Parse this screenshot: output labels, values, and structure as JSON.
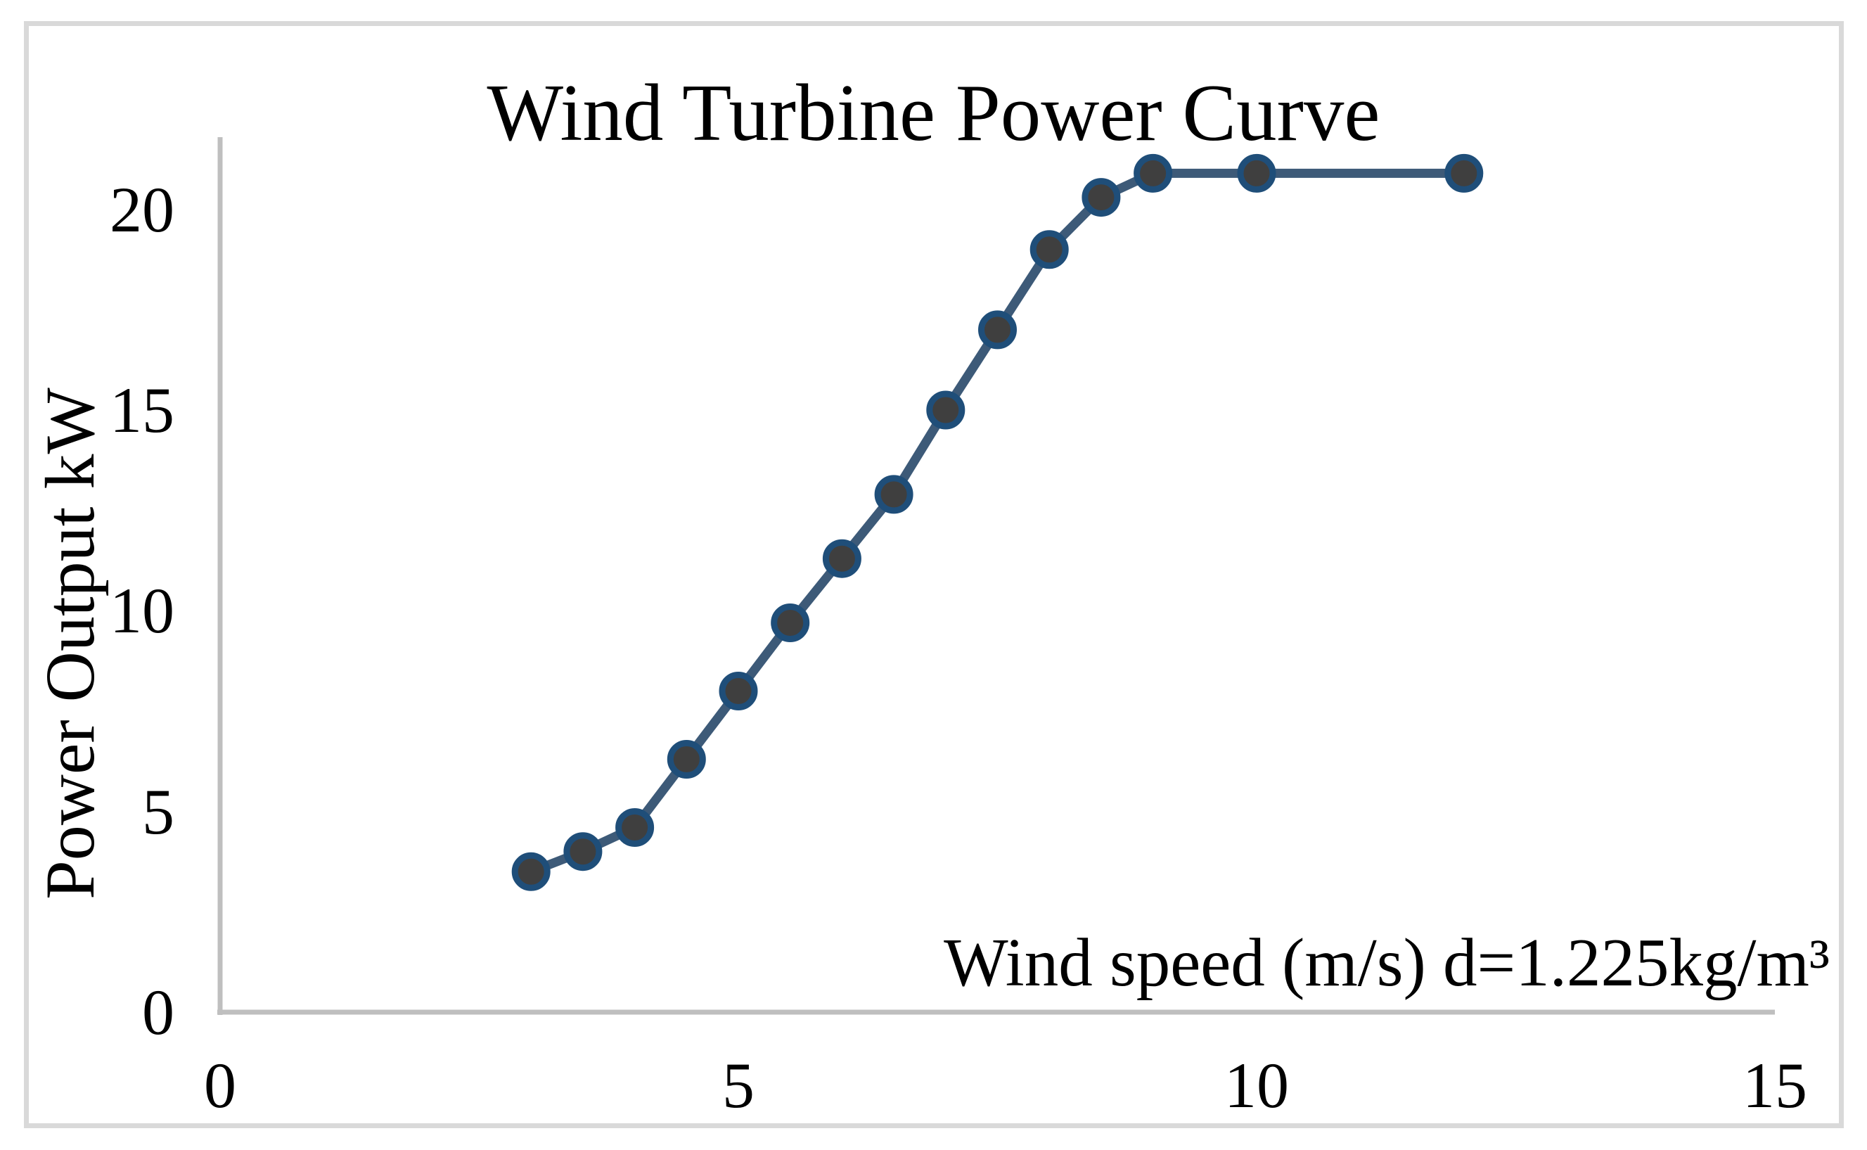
{
  "figure": {
    "background": "#ffffff",
    "border_color": "#d9d9d9"
  },
  "chart_data": {
    "type": "line",
    "title": "Wind Turbine Power Curve",
    "ylabel": "Power Output kW",
    "xlabel": "",
    "x_axis_annotation": "Wind speed (m/s) d=1.225kg/m³",
    "xlim": [
      0,
      15
    ],
    "ylim": [
      0,
      21.8
    ],
    "x_ticks": [
      0,
      5,
      10,
      15
    ],
    "y_ticks": [
      0,
      5,
      10,
      15,
      20
    ],
    "grid": false,
    "legend": false,
    "axis_color": "#bfbfbf",
    "series": [
      {
        "name": "Power Output",
        "x": [
          3,
          3.5,
          4,
          4.5,
          5,
          5.5,
          6,
          6.5,
          7,
          7.5,
          8,
          8.5,
          9,
          10,
          12
        ],
        "y": [
          3.5,
          4.0,
          4.6,
          6.3,
          8.0,
          9.7,
          11.3,
          12.9,
          15.0,
          17.0,
          19.0,
          20.3,
          20.9,
          20.9,
          20.9
        ],
        "line_color": "#3d5a78",
        "marker_fill": "#3f3f3f",
        "marker_ring": "#1f4e79"
      }
    ]
  }
}
